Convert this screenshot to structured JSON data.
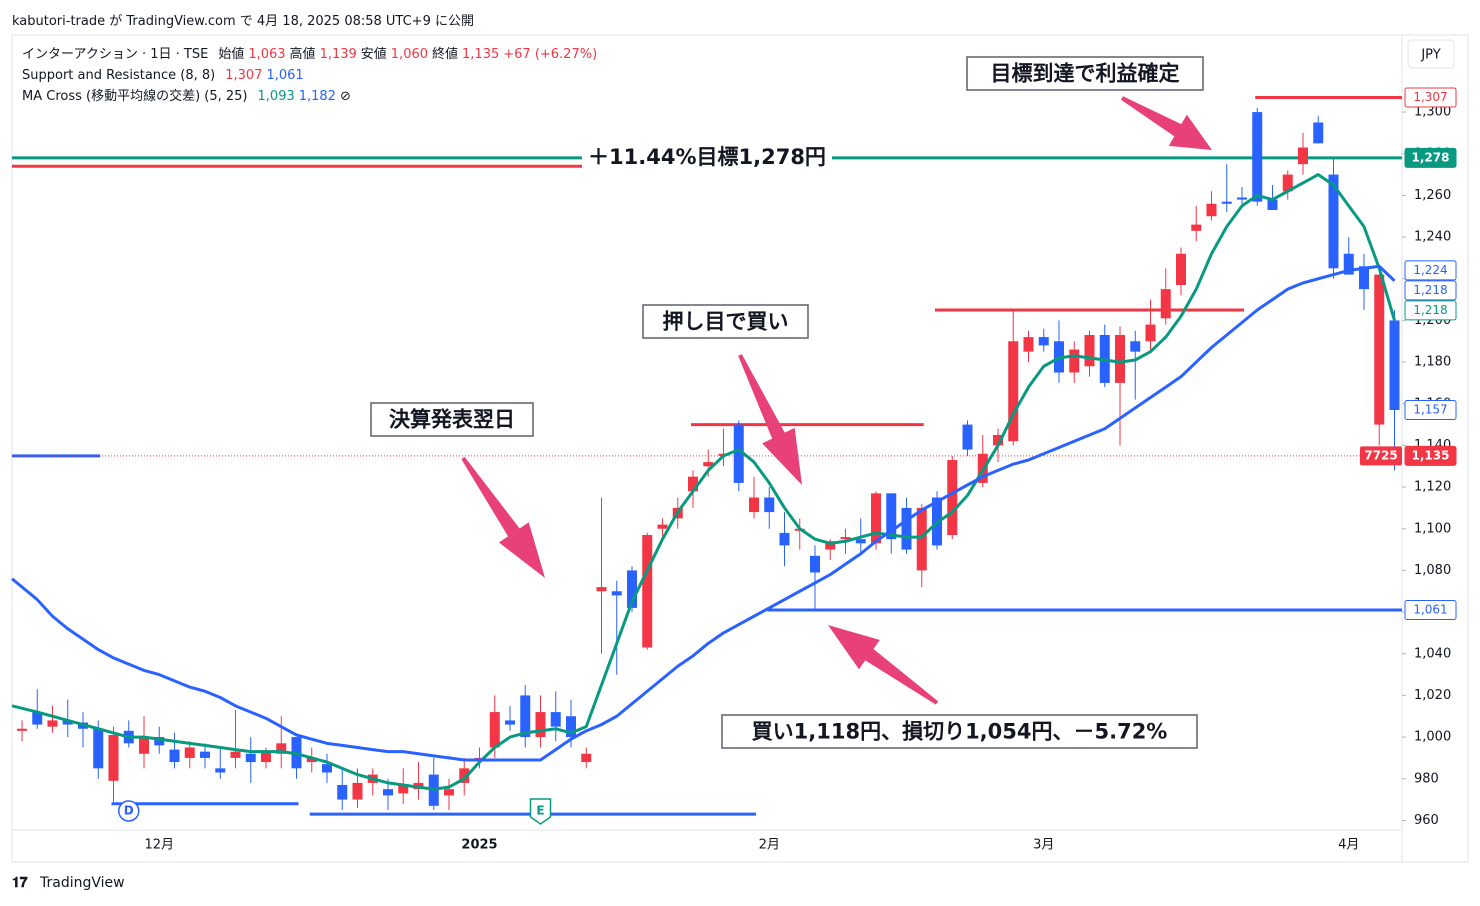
{
  "chart_data": {
    "type": "candlestick",
    "header": "kabutori-trade が TradingView.com で 4月 18, 2025 08:58 UTC+9 に公開",
    "footer": "TradingView",
    "currency": "JPY",
    "legend": [
      [
        {
          "text": "インターアクション · 1日 · TSE",
          "color": "#131722"
        },
        {
          "text": "始値",
          "color": "#131722"
        },
        {
          "text": "1,063",
          "color": "#f23645"
        },
        {
          "text": "高値",
          "color": "#131722"
        },
        {
          "text": "1,139",
          "color": "#f23645"
        },
        {
          "text": "安値",
          "color": "#131722"
        },
        {
          "text": "1,060",
          "color": "#f23645"
        },
        {
          "text": "終値",
          "color": "#131722"
        },
        {
          "text": "1,135",
          "color": "#f23645"
        },
        {
          "text": "+67 (+6.27%)",
          "color": "#f23645"
        }
      ],
      [
        {
          "text": "Support and Resistance (8, 8)",
          "color": "#131722"
        },
        {
          "text": "1,307",
          "color": "#f23645"
        },
        {
          "text": "1,061",
          "color": "#2962ff"
        }
      ],
      [
        {
          "text": "MA Cross (移動平均線の交差) (5, 25)",
          "color": "#131722"
        },
        {
          "text": "1,093",
          "color": "#089981"
        },
        {
          "text": "1,182",
          "color": "#2962ff"
        },
        {
          "text": "⊘",
          "color": "#131722"
        }
      ]
    ],
    "categories": [
      null,
      null,
      null,
      null,
      null,
      null,
      null,
      null,
      null,
      "12月",
      null,
      null,
      null,
      null,
      null,
      null,
      null,
      null,
      null,
      null,
      null,
      null,
      null,
      null,
      null,
      null,
      null,
      null,
      null,
      null,
      "2025",
      null,
      null,
      null,
      null,
      null,
      null,
      null,
      null,
      null,
      null,
      null,
      null,
      null,
      null,
      null,
      null,
      null,
      null,
      "2月",
      null,
      null,
      null,
      null,
      null,
      null,
      null,
      null,
      null,
      null,
      null,
      null,
      null,
      null,
      null,
      null,
      null,
      "3月",
      null,
      null,
      null,
      null,
      null,
      null,
      null,
      null,
      null,
      null,
      null,
      null,
      null,
      null,
      null,
      null,
      null,
      null,
      null,
      "4月",
      null,
      null,
      null
    ],
    "open": [
      1003,
      1012,
      1005,
      1008,
      1007,
      1004,
      979,
      1003,
      992,
      1000,
      994,
      990,
      993,
      985,
      990,
      992,
      988,
      992,
      1000,
      988,
      987,
      977,
      970,
      978,
      975,
      973,
      975,
      982,
      972,
      978,
      990,
      995,
      1008,
      1020,
      1000,
      1012,
      1010,
      988,
      1070,
      1070,
      1080,
      1043,
      1100,
      1105,
      1118,
      1130,
      1135,
      1150,
      1108,
      1115,
      1098,
      1100,
      1087,
      1090,
      1095,
      1095,
      1093,
      1117,
      1110,
      1080,
      1115,
      1097,
      1150,
      1122,
      1140,
      1142,
      1185,
      1192,
      1190,
      1175,
      1178,
      1193,
      1170,
      1190,
      1190,
      1201,
      1217,
      1243,
      1250,
      1257,
      1259,
      1300,
      1258,
      1262,
      1275,
      1295,
      1270,
      1232,
      1226,
      1150,
      1200
    ],
    "high": [
      1008,
      1023,
      1015,
      1018,
      1012,
      1008,
      1005,
      1008,
      1010,
      1005,
      1002,
      998,
      997,
      995,
      1013,
      1000,
      995,
      1010,
      1000,
      995,
      992,
      985,
      985,
      985,
      980,
      985,
      988,
      990,
      980,
      990,
      995,
      1020,
      1015,
      1025,
      1020,
      1022,
      1018,
      995,
      1115,
      1075,
      1082,
      1098,
      1105,
      1115,
      1128,
      1138,
      1148,
      1152,
      1125,
      1120,
      1108,
      1105,
      1092,
      1095,
      1100,
      1105,
      1118,
      1117,
      1115,
      1112,
      1118,
      1135,
      1152,
      1145,
      1148,
      1205,
      1195,
      1196,
      1200,
      1190,
      1195,
      1198,
      1197,
      1195,
      1210,
      1225,
      1235,
      1255,
      1262,
      1275,
      1264,
      1302,
      1265,
      1272,
      1290,
      1298,
      1278,
      1240,
      1232,
      1222,
      1205
    ],
    "low": [
      998,
      1004,
      1002,
      1000,
      995,
      980,
      968,
      995,
      985,
      992,
      985,
      985,
      985,
      980,
      985,
      978,
      985,
      985,
      980,
      983,
      978,
      965,
      966,
      972,
      965,
      968,
      970,
      965,
      965,
      972,
      985,
      990,
      1003,
      995,
      995,
      998,
      995,
      985,
      1040,
      1030,
      1060,
      1042,
      1095,
      1100,
      1110,
      1125,
      1130,
      1118,
      1105,
      1100,
      1082,
      1090,
      1061,
      1085,
      1088,
      1088,
      1090,
      1088,
      1088,
      1072,
      1090,
      1095,
      1135,
      1120,
      1132,
      1140,
      1180,
      1185,
      1170,
      1170,
      1173,
      1168,
      1140,
      1162,
      1185,
      1198,
      1212,
      1238,
      1248,
      1252,
      1255,
      1255,
      1253,
      1258,
      1270,
      1285,
      1220,
      1222,
      1205,
      1140,
      1128
    ],
    "close": [
      1004,
      1006,
      1008,
      1006,
      1004,
      985,
      1001,
      997,
      1000,
      996,
      988,
      995,
      990,
      983,
      993,
      988,
      993,
      997,
      985,
      990,
      983,
      970,
      978,
      982,
      972,
      977,
      978,
      967,
      975,
      985,
      990,
      1012,
      1006,
      1000,
      1012,
      1005,
      1000,
      992,
      1072,
      1068,
      1062,
      1097,
      1102,
      1110,
      1125,
      1132,
      1136,
      1122,
      1115,
      1108,
      1092,
      1100,
      1079,
      1094,
      1096,
      1093,
      1117,
      1095,
      1090,
      1110,
      1092,
      1133,
      1138,
      1136,
      1145,
      1190,
      1192,
      1188,
      1175,
      1186,
      1193,
      1170,
      1193,
      1185,
      1198,
      1215,
      1232,
      1246,
      1256,
      1256,
      1258,
      1257,
      1253,
      1270,
      1283,
      1285,
      1225,
      1222,
      1215,
      1222,
      1157
    ],
    "up_color": "#f23645",
    "down_color": "#2962ff",
    "series": [
      {
        "name": "MA 5",
        "color": "#089981",
        "values": [
          1015,
          1012,
          1010,
          1008,
          1006,
          1004,
          1002,
          1000,
          1000,
          999,
          998,
          997,
          996,
          995,
          994,
          993,
          993,
          993,
          992,
          990,
          988,
          985,
          982,
          980,
          978,
          977,
          976,
          975,
          976,
          980,
          988,
          995,
          1000,
          1002,
          1003,
          1004,
          1002,
          1005,
          1025,
          1045,
          1065,
          1080,
          1095,
          1108,
          1118,
          1128,
          1135,
          1138,
          1132,
          1122,
          1110,
          1100,
          1095,
          1093,
          1094,
          1096,
          1098,
          1097,
          1096,
          1096,
          1103,
          1108,
          1116,
          1128,
          1140,
          1155,
          1168,
          1178,
          1182,
          1183,
          1182,
          1181,
          1180,
          1181,
          1185,
          1192,
          1202,
          1215,
          1232,
          1245,
          1255,
          1260,
          1258,
          1262,
          1266,
          1270,
          1265,
          1255,
          1245,
          1225,
          1200
        ]
      },
      {
        "name": "MA 25",
        "color": "#2962ff",
        "values": [
          1076,
          1066,
          1058,
          1052,
          1047,
          1042,
          1038,
          1035,
          1032,
          1030,
          1027,
          1024,
          1022,
          1019,
          1015,
          1012,
          1009,
          1005,
          1001,
          999,
          997,
          996,
          995,
          994,
          993,
          993,
          992,
          991,
          990,
          989,
          989,
          989,
          989,
          989,
          989,
          994,
          999,
          1003,
          1006,
          1010,
          1016,
          1022,
          1028,
          1034,
          1039,
          1045,
          1050,
          1054,
          1058,
          1062,
          1066,
          1070,
          1074,
          1078,
          1083,
          1088,
          1094,
          1099,
          1104,
          1109,
          1113,
          1117,
          1121,
          1125,
          1128,
          1131,
          1133,
          1136,
          1139,
          1142,
          1145,
          1148,
          1153,
          1158,
          1163,
          1168,
          1173,
          1180,
          1187,
          1193,
          1199,
          1205,
          1210,
          1215,
          1218,
          1220,
          1222,
          1224,
          1225,
          1226,
          1219
        ]
      }
    ],
    "levels": [
      {
        "value": 1278,
        "color": "#089981",
        "from": 0,
        "to": 90
      },
      {
        "value": 1307,
        "color": "#f23645",
        "from": 81,
        "to": 90
      },
      {
        "value": 1274,
        "color": "#f23645",
        "from": 0,
        "to": 43
      },
      {
        "value": 1205,
        "color": "#f23645",
        "from": 60,
        "to": 80
      },
      {
        "value": 1150,
        "color": "#f23645",
        "from": 44,
        "to": 59
      },
      {
        "value": 1061,
        "color": "#2962ff",
        "from": 49,
        "to": 90
      },
      {
        "value": 963,
        "color": "#2962ff",
        "from": 19,
        "to": 48
      },
      {
        "value": 968,
        "color": "#2962ff",
        "from": 6,
        "to": 18
      },
      {
        "value": 1135,
        "color": "#2962ff",
        "from": 0,
        "to": 5
      }
    ],
    "price_line": {
      "value": 1135,
      "color": "#f23645",
      "countdown": "7725"
    },
    "badges": [
      {
        "value": 1307,
        "label": "1,307",
        "color": "#f23645",
        "filled": false
      },
      {
        "value": 1278,
        "label": "1,278",
        "color": "#089981",
        "filled": true
      },
      {
        "value": 1224,
        "label": "1,224",
        "color": "#2962ff",
        "filled": false
      },
      {
        "value": 1218,
        "label": "1,218",
        "color": "#2962ff",
        "filled": false
      },
      {
        "value": 1218,
        "label": "1,218",
        "color": "#089981",
        "filled": false
      },
      {
        "value": 1157,
        "label": "1,157",
        "color": "#2962ff",
        "filled": false
      },
      {
        "value": 1135,
        "label": "1,135",
        "color": "#f23645",
        "filled": true
      },
      {
        "value": 1061,
        "label": "1,061",
        "color": "#2962ff",
        "filled": false
      }
    ],
    "events": [
      {
        "index": 7,
        "label": "D",
        "color": "#2962ff"
      },
      {
        "index": 34,
        "label": "E",
        "color": "#089981"
      }
    ],
    "annotations": [
      "目標到達で利益確定",
      "＋11.44%目標1,278円",
      "押し目で買い",
      "決算発表翌日",
      "買い1,118円、損切り1,054円、－5.72%"
    ],
    "ylim": [
      941,
      1337
    ],
    "yticks": [
      960,
      980,
      {
        "value": 1000,
        "label": "1,000"
      },
      {
        "value": 1020,
        "label": "1,020"
      },
      {
        "value": 1040,
        "label": "1,040"
      },
      {
        "value": 1060,
        "label": "1,060"
      },
      {
        "value": 1080,
        "label": "1,080"
      },
      {
        "value": 1100,
        "label": "1,100"
      },
      {
        "value": 1120,
        "label": "1,120"
      },
      {
        "value": 1140,
        "label": "1,140"
      },
      {
        "value": 1160,
        "label": "1,160"
      },
      {
        "value": 1180,
        "label": "1,180"
      },
      {
        "value": 1200,
        "label": "1,200"
      },
      {
        "value": 1220,
        "label": "1,220"
      },
      {
        "value": 1240,
        "label": "1,240"
      },
      {
        "value": 1260,
        "label": "1,260"
      },
      {
        "value": 1280,
        "label": "1,280"
      },
      {
        "value": 1300,
        "label": "1,300"
      }
    ]
  }
}
